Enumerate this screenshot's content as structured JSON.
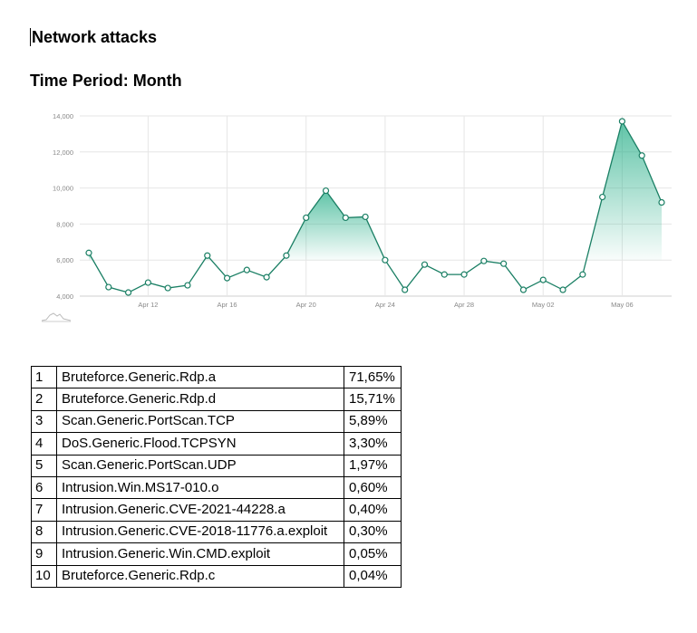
{
  "title": "Network attacks",
  "subtitle": "Time Period: Month",
  "chart_data": {
    "type": "area",
    "y_ticks": [
      "4,000",
      "6,000",
      "8,000",
      "10,000",
      "12,000",
      "14,000"
    ],
    "x_ticks": [
      "Apr 12",
      "Apr 16",
      "Apr 20",
      "Apr 24",
      "Apr 28",
      "May 02",
      "May 06"
    ],
    "ylim": [
      4000,
      14000
    ],
    "grid": true,
    "x": [
      "Apr 09",
      "Apr 10",
      "Apr 11",
      "Apr 12",
      "Apr 13",
      "Apr 14",
      "Apr 15",
      "Apr 16",
      "Apr 17",
      "Apr 18",
      "Apr 19",
      "Apr 20",
      "Apr 21",
      "Apr 22",
      "Apr 23",
      "Apr 24",
      "Apr 25",
      "Apr 26",
      "Apr 27",
      "Apr 28",
      "Apr 29",
      "Apr 30",
      "May 01",
      "May 02",
      "May 03",
      "May 04",
      "May 05",
      "May 06",
      "May 07",
      "May 08"
    ],
    "values": [
      6400,
      4500,
      4200,
      4750,
      4450,
      4600,
      6250,
      5000,
      5450,
      5050,
      6250,
      8350,
      9850,
      8350,
      8400,
      6000,
      4350,
      5750,
      5200,
      5200,
      5950,
      5800,
      4350,
      4900,
      4350,
      5200,
      9500,
      13700,
      11800,
      9200
    ],
    "colors": {
      "line": "#1a7f64",
      "fill": "#2ab08a",
      "grid": "#e6e6e6",
      "axis_text": "#888888"
    }
  },
  "table": {
    "rows": [
      {
        "rank": "1",
        "name": "Bruteforce.Generic.Rdp.a",
        "share": "71,65%"
      },
      {
        "rank": "2",
        "name": "Bruteforce.Generic.Rdp.d",
        "share": "15,71%"
      },
      {
        "rank": "3",
        "name": "Scan.Generic.PortScan.TCP",
        "share": "5,89%"
      },
      {
        "rank": "4",
        "name": "DoS.Generic.Flood.TCPSYN",
        "share": "3,30%"
      },
      {
        "rank": "5",
        "name": "Scan.Generic.PortScan.UDP",
        "share": "1,97%"
      },
      {
        "rank": "6",
        "name": "Intrusion.Win.MS17-010.o",
        "share": "0,60%"
      },
      {
        "rank": "7",
        "name": "Intrusion.Generic.CVE-2021-44228.a",
        "share": "0,40%"
      },
      {
        "rank": "8",
        "name": "Intrusion.Generic.CVE-2018-11776.a.exploit",
        "share": "0,30%"
      },
      {
        "rank": "9",
        "name": "Intrusion.Generic.Win.CMD.exploit",
        "share": "0,05%"
      },
      {
        "rank": "10",
        "name": "Bruteforce.Generic.Rdp.c",
        "share": "0,04%"
      }
    ]
  }
}
